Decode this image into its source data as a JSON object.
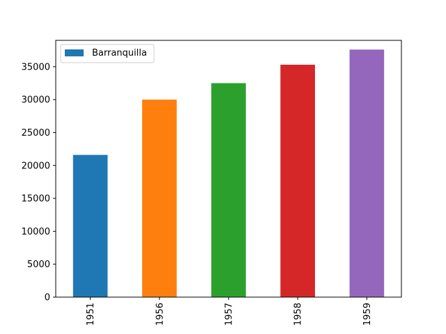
{
  "chart_data": {
    "type": "bar",
    "title": "",
    "xlabel": "",
    "ylabel": "",
    "categories": [
      "1951",
      "1956",
      "1957",
      "1958",
      "1959"
    ],
    "series": [
      {
        "name": "Barranquilla",
        "values": [
          21600,
          30000,
          32500,
          35300,
          37600
        ]
      }
    ],
    "bar_colors": [
      "#1f77b4",
      "#ff7f0e",
      "#2ca02c",
      "#d62728",
      "#9467bd"
    ],
    "ylim": [
      0,
      39000
    ],
    "yticks": [
      "0",
      "5000",
      "10000",
      "15000",
      "20000",
      "25000",
      "30000",
      "35000"
    ],
    "x_tick_rotation": "vertical",
    "grid": false,
    "legend": {
      "position": "upper-left",
      "entries": [
        {
          "label": "Barranquilla",
          "color": "#1f77b4"
        }
      ]
    }
  }
}
